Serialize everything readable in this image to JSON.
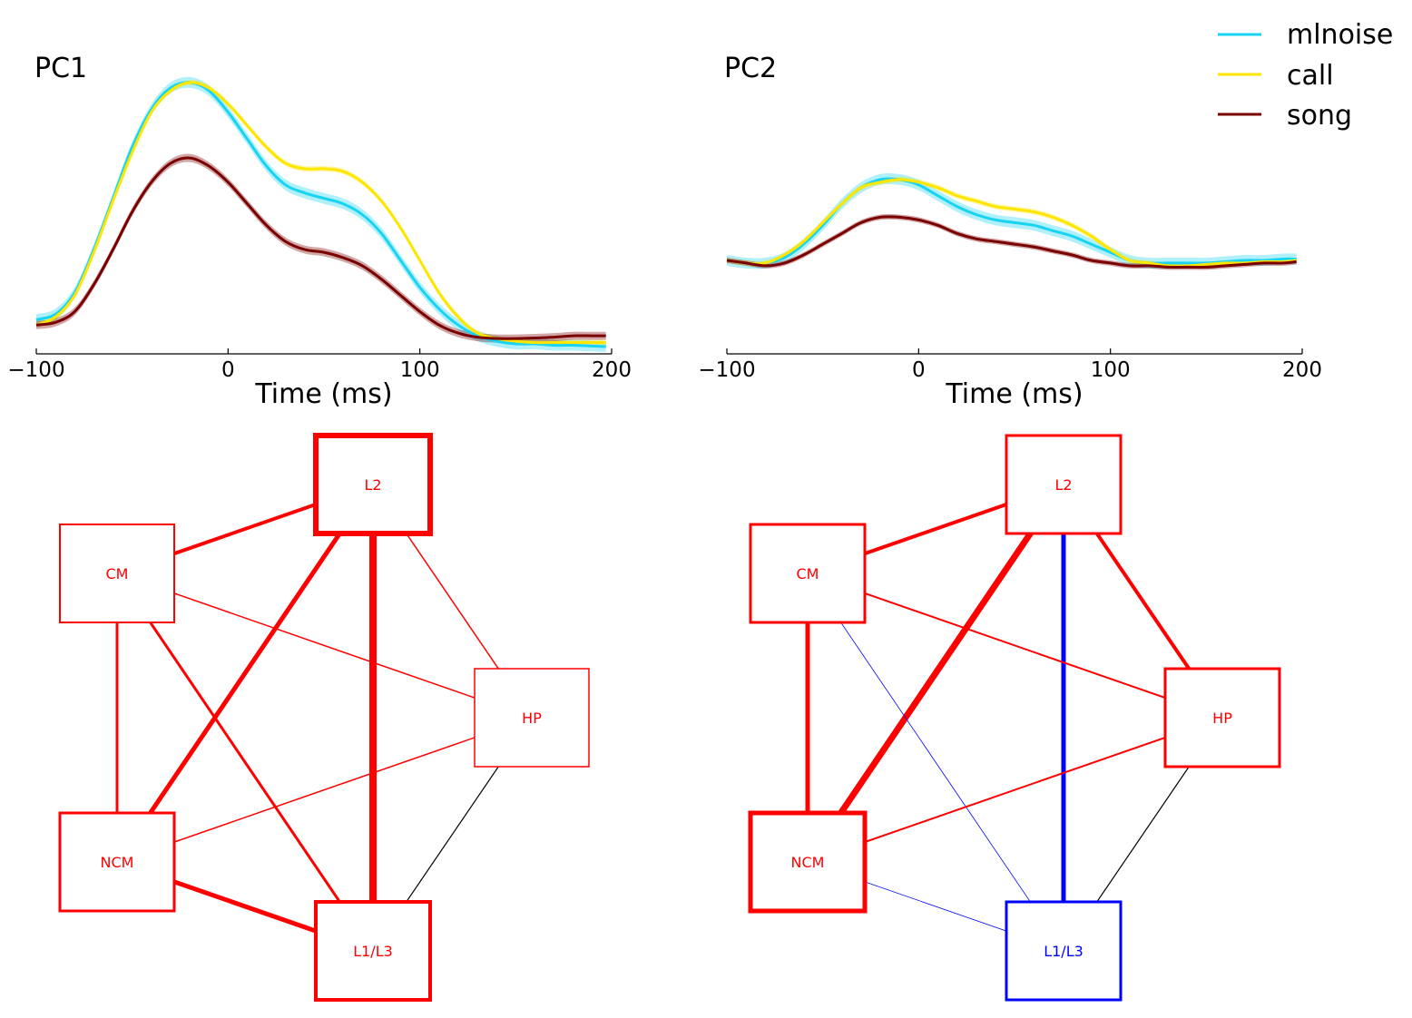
{
  "legend": {
    "placement": "top-right",
    "entries": [
      {
        "label": "mlnoise",
        "color": "#19d3f3"
      },
      {
        "label": "call",
        "color": "#ffe600"
      },
      {
        "label": "song",
        "color": "#7a0000"
      }
    ]
  },
  "chart_data": [
    {
      "type": "line",
      "title": "PC1",
      "xlabel": "Time (ms)",
      "ylabel": "",
      "xlim": [
        -100,
        200
      ],
      "ylim": [
        0,
        1.0
      ],
      "xticks": [
        -100,
        0,
        100,
        200
      ],
      "xtick_labels": [
        "−100",
        "0",
        "100",
        "200"
      ],
      "grid": false,
      "x": [
        -100,
        -90,
        -80,
        -70,
        -60,
        -50,
        -40,
        -30,
        -20,
        -10,
        0,
        10,
        20,
        30,
        40,
        50,
        60,
        70,
        80,
        90,
        100,
        110,
        120,
        130,
        140,
        150,
        160,
        170,
        180,
        190,
        197
      ],
      "series": [
        {
          "name": "mlnoise",
          "color": "#19d3f3",
          "band": 0.02,
          "values": [
            0.1,
            0.12,
            0.2,
            0.36,
            0.55,
            0.74,
            0.88,
            0.96,
            0.98,
            0.95,
            0.87,
            0.77,
            0.67,
            0.6,
            0.57,
            0.55,
            0.53,
            0.49,
            0.42,
            0.32,
            0.22,
            0.14,
            0.08,
            0.04,
            0.02,
            0.01,
            0.01,
            0.005,
            0.005,
            0.002,
            0.0
          ]
        },
        {
          "name": "call",
          "color": "#ffe600",
          "band": 0.01,
          "values": [
            0.08,
            0.11,
            0.19,
            0.35,
            0.54,
            0.72,
            0.87,
            0.95,
            0.98,
            0.96,
            0.9,
            0.82,
            0.74,
            0.68,
            0.66,
            0.66,
            0.65,
            0.61,
            0.54,
            0.44,
            0.32,
            0.2,
            0.11,
            0.05,
            0.03,
            0.02,
            0.015,
            0.015,
            0.015,
            0.015,
            0.015
          ]
        },
        {
          "name": "song",
          "color": "#7a0000",
          "band": 0.015,
          "values": [
            0.08,
            0.09,
            0.13,
            0.23,
            0.36,
            0.5,
            0.61,
            0.68,
            0.7,
            0.67,
            0.61,
            0.53,
            0.45,
            0.39,
            0.36,
            0.35,
            0.33,
            0.3,
            0.25,
            0.19,
            0.13,
            0.08,
            0.05,
            0.035,
            0.03,
            0.03,
            0.032,
            0.035,
            0.04,
            0.04,
            0.04
          ]
        }
      ]
    },
    {
      "type": "line",
      "title": "PC2",
      "xlabel": "Time (ms)",
      "ylabel": "",
      "xlim": [
        -100,
        200
      ],
      "ylim": [
        0,
        1.0
      ],
      "xticks": [
        -100,
        0,
        100,
        200
      ],
      "xtick_labels": [
        "−100",
        "0",
        "100",
        "200"
      ],
      "grid": false,
      "x": [
        -100,
        -90,
        -80,
        -70,
        -60,
        -50,
        -40,
        -30,
        -20,
        -10,
        0,
        10,
        20,
        30,
        40,
        50,
        60,
        70,
        80,
        90,
        100,
        110,
        120,
        130,
        140,
        150,
        160,
        170,
        180,
        190,
        197
      ],
      "series": [
        {
          "name": "mlnoise",
          "color": "#19d3f3",
          "band": 0.02,
          "values": [
            0.32,
            0.31,
            0.31,
            0.33,
            0.38,
            0.45,
            0.53,
            0.59,
            0.62,
            0.62,
            0.6,
            0.56,
            0.52,
            0.49,
            0.47,
            0.46,
            0.45,
            0.43,
            0.41,
            0.38,
            0.35,
            0.32,
            0.31,
            0.31,
            0.31,
            0.31,
            0.315,
            0.32,
            0.32,
            0.325,
            0.325
          ]
        },
        {
          "name": "call",
          "color": "#ffe600",
          "band": 0.01,
          "values": [
            0.32,
            0.31,
            0.31,
            0.34,
            0.39,
            0.46,
            0.53,
            0.59,
            0.61,
            0.62,
            0.61,
            0.59,
            0.56,
            0.54,
            0.52,
            0.51,
            0.5,
            0.48,
            0.45,
            0.41,
            0.36,
            0.32,
            0.31,
            0.3,
            0.3,
            0.305,
            0.31,
            0.31,
            0.315,
            0.315,
            0.32
          ]
        },
        {
          "name": "song",
          "color": "#7a0000",
          "band": 0.01,
          "values": [
            0.32,
            0.31,
            0.3,
            0.31,
            0.34,
            0.38,
            0.42,
            0.46,
            0.48,
            0.48,
            0.47,
            0.45,
            0.42,
            0.4,
            0.39,
            0.38,
            0.37,
            0.355,
            0.34,
            0.32,
            0.31,
            0.3,
            0.3,
            0.295,
            0.295,
            0.295,
            0.3,
            0.305,
            0.31,
            0.31,
            0.315
          ]
        }
      ]
    }
  ],
  "networks": [
    {
      "nodes": [
        {
          "id": "L2",
          "label": "L2",
          "color": "#ff0000",
          "border": 6
        },
        {
          "id": "CM",
          "label": "CM",
          "color": "#ff0000",
          "border": 2
        },
        {
          "id": "HP",
          "label": "HP",
          "color": "#ff0000",
          "border": 1.5
        },
        {
          "id": "NCM",
          "label": "NCM",
          "color": "#ff0000",
          "border": 3
        },
        {
          "id": "L1L3",
          "label": "L1/L3",
          "color": "#ff0000",
          "border": 4
        }
      ],
      "edges": [
        {
          "from": "CM",
          "to": "L2",
          "color": "#ff0000",
          "width": 4
        },
        {
          "from": "L2",
          "to": "NCM",
          "color": "#ff0000",
          "width": 5
        },
        {
          "from": "L2",
          "to": "L1L3",
          "color": "#ff0000",
          "width": 8
        },
        {
          "from": "L2",
          "to": "HP",
          "color": "#ff0000",
          "width": 1.5
        },
        {
          "from": "CM",
          "to": "HP",
          "color": "#ff0000",
          "width": 1.5
        },
        {
          "from": "CM",
          "to": "NCM",
          "color": "#ff0000",
          "width": 3
        },
        {
          "from": "CM",
          "to": "L1L3",
          "color": "#ff0000",
          "width": 3
        },
        {
          "from": "NCM",
          "to": "HP",
          "color": "#ff0000",
          "width": 1.5
        },
        {
          "from": "NCM",
          "to": "L1L3",
          "color": "#ff0000",
          "width": 5
        },
        {
          "from": "HP",
          "to": "L1L3",
          "color": "#000000",
          "width": 1.2
        }
      ]
    },
    {
      "nodes": [
        {
          "id": "L2",
          "label": "L2",
          "color": "#ff0000",
          "border": 3
        },
        {
          "id": "CM",
          "label": "CM",
          "color": "#ff0000",
          "border": 3
        },
        {
          "id": "HP",
          "label": "HP",
          "color": "#ff0000",
          "border": 3
        },
        {
          "id": "NCM",
          "label": "NCM",
          "color": "#ff0000",
          "border": 5
        },
        {
          "id": "L1L3",
          "label": "L1/L3",
          "color": "#0000ff",
          "border": 3
        }
      ],
      "edges": [
        {
          "from": "CM",
          "to": "L2",
          "color": "#ff0000",
          "width": 4
        },
        {
          "from": "L2",
          "to": "NCM",
          "color": "#ff0000",
          "width": 7
        },
        {
          "from": "L2",
          "to": "L1L3",
          "color": "#0000ff",
          "width": 5
        },
        {
          "from": "L2",
          "to": "HP",
          "color": "#ff0000",
          "width": 4
        },
        {
          "from": "CM",
          "to": "HP",
          "color": "#ff0000",
          "width": 2
        },
        {
          "from": "CM",
          "to": "NCM",
          "color": "#ff0000",
          "width": 5
        },
        {
          "from": "CM",
          "to": "L1L3",
          "color": "#0000ff",
          "width": 0.8
        },
        {
          "from": "NCM",
          "to": "HP",
          "color": "#ff0000",
          "width": 2
        },
        {
          "from": "NCM",
          "to": "L1L3",
          "color": "#0000ff",
          "width": 0.8
        },
        {
          "from": "HP",
          "to": "L1L3",
          "color": "#000000",
          "width": 1.2
        }
      ]
    }
  ]
}
